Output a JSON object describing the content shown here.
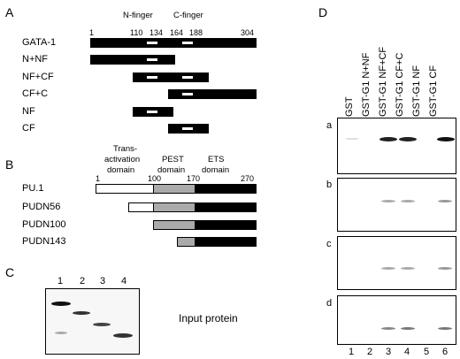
{
  "panels": {
    "A": "A",
    "B": "B",
    "C": "C",
    "D": "D"
  },
  "panel_a": {
    "n_finger": "N-finger",
    "c_finger": "C-finger",
    "positions": [
      "1",
      "110",
      "134",
      "164",
      "188",
      "304"
    ],
    "constructs": [
      "GATA-1",
      "N+NF",
      "NF+CF",
      "CF+C",
      "NF",
      "CF"
    ]
  },
  "panel_b": {
    "domains": {
      "trans": [
        "Trans-",
        "activation",
        "domain"
      ],
      "pest": [
        "PEST",
        "domain"
      ],
      "ets": [
        "ETS",
        "domain"
      ]
    },
    "positions": [
      "1",
      "100",
      "170",
      "270"
    ],
    "constructs": [
      "PU.1",
      "PUDN56",
      "PUDN100",
      "PUDN143"
    ]
  },
  "panel_c": {
    "lanes": [
      "1",
      "2",
      "3",
      "4"
    ],
    "caption": "Input protein"
  },
  "panel_d": {
    "columns": [
      "GST",
      "GST-G1 N+NF",
      "GST-G1 NF+CF",
      "GST-G1 CF+C",
      "GST-G1 NF",
      "GST-G1 CF"
    ],
    "rows": [
      "a",
      "b",
      "c",
      "d"
    ],
    "lanes": [
      "1",
      "2",
      "3",
      "4",
      "5",
      "6"
    ]
  }
}
